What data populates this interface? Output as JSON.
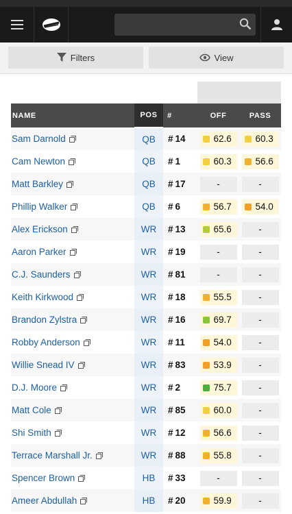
{
  "toolbar": {
    "filters_label": "Filters",
    "view_label": "View"
  },
  "table": {
    "headers": {
      "name": "NAME",
      "pos": "POS",
      "num": "#",
      "off": "OFF",
      "pass": "PASS"
    },
    "rows": [
      {
        "name": "Sam Darnold",
        "pos": "QB",
        "num": "14",
        "off": "62.6",
        "off_color": "#f0d040",
        "pass": "60.3",
        "pass_color": "#f0d040"
      },
      {
        "name": "Cam Newton",
        "pos": "QB",
        "num": "1",
        "off": "60.3",
        "off_color": "#f0d040",
        "pass": "56.6",
        "pass_color": "#f0b030"
      },
      {
        "name": "Matt Barkley",
        "pos": "QB",
        "num": "17",
        "off": "-",
        "off_color": "",
        "pass": "-",
        "pass_color": ""
      },
      {
        "name": "Phillip Walker",
        "pos": "QB",
        "num": "6",
        "off": "56.7",
        "off_color": "#f0b030",
        "pass": "54.0",
        "pass_color": "#f0a028"
      },
      {
        "name": "Alex Erickson",
        "pos": "WR",
        "num": "13",
        "off": "65.6",
        "off_color": "#b4cc3a",
        "pass": "-",
        "pass_color": ""
      },
      {
        "name": "Aaron Parker",
        "pos": "WR",
        "num": "19",
        "off": "-",
        "off_color": "",
        "pass": "-",
        "pass_color": ""
      },
      {
        "name": "C.J. Saunders",
        "pos": "WR",
        "num": "81",
        "off": "-",
        "off_color": "",
        "pass": "-",
        "pass_color": ""
      },
      {
        "name": "Keith Kirkwood",
        "pos": "WR",
        "num": "18",
        "off": "55.5",
        "off_color": "#f0b030",
        "pass": "-",
        "pass_color": ""
      },
      {
        "name": "Brandon Zylstra",
        "pos": "WR",
        "num": "16",
        "off": "69.7",
        "off_color": "#8cc43c",
        "pass": "-",
        "pass_color": ""
      },
      {
        "name": "Robby Anderson",
        "pos": "WR",
        "num": "11",
        "off": "54.0",
        "off_color": "#f0a028",
        "pass": "-",
        "pass_color": ""
      },
      {
        "name": "Willie Snead IV",
        "pos": "WR",
        "num": "83",
        "off": "53.9",
        "off_color": "#f0a028",
        "pass": "-",
        "pass_color": ""
      },
      {
        "name": "D.J. Moore",
        "pos": "WR",
        "num": "2",
        "off": "75.7",
        "off_color": "#4caf3c",
        "pass": "-",
        "pass_color": ""
      },
      {
        "name": "Matt Cole",
        "pos": "WR",
        "num": "85",
        "off": "60.0",
        "off_color": "#f0d040",
        "pass": "-",
        "pass_color": ""
      },
      {
        "name": "Shi Smith",
        "pos": "WR",
        "num": "12",
        "off": "56.6",
        "off_color": "#f0b030",
        "pass": "-",
        "pass_color": ""
      },
      {
        "name": "Terrace Marshall Jr.",
        "pos": "WR",
        "num": "88",
        "off": "55.8",
        "off_color": "#f0b030",
        "pass": "-",
        "pass_color": ""
      },
      {
        "name": "Spencer Brown",
        "pos": "HB",
        "num": "33",
        "off": "-",
        "off_color": "",
        "pass": "-",
        "pass_color": ""
      },
      {
        "name": "Ameer Abdullah",
        "pos": "HB",
        "num": "20",
        "off": "59.9",
        "off_color": "#f0b030",
        "pass": "-",
        "pass_color": ""
      }
    ]
  },
  "icons": {
    "menu": "hamburger-menu-icon",
    "logo": "pff-logo",
    "search": "search-icon",
    "user": "user-icon",
    "filter": "filter-icon",
    "view": "eye-icon",
    "copy": "copy-icon"
  }
}
